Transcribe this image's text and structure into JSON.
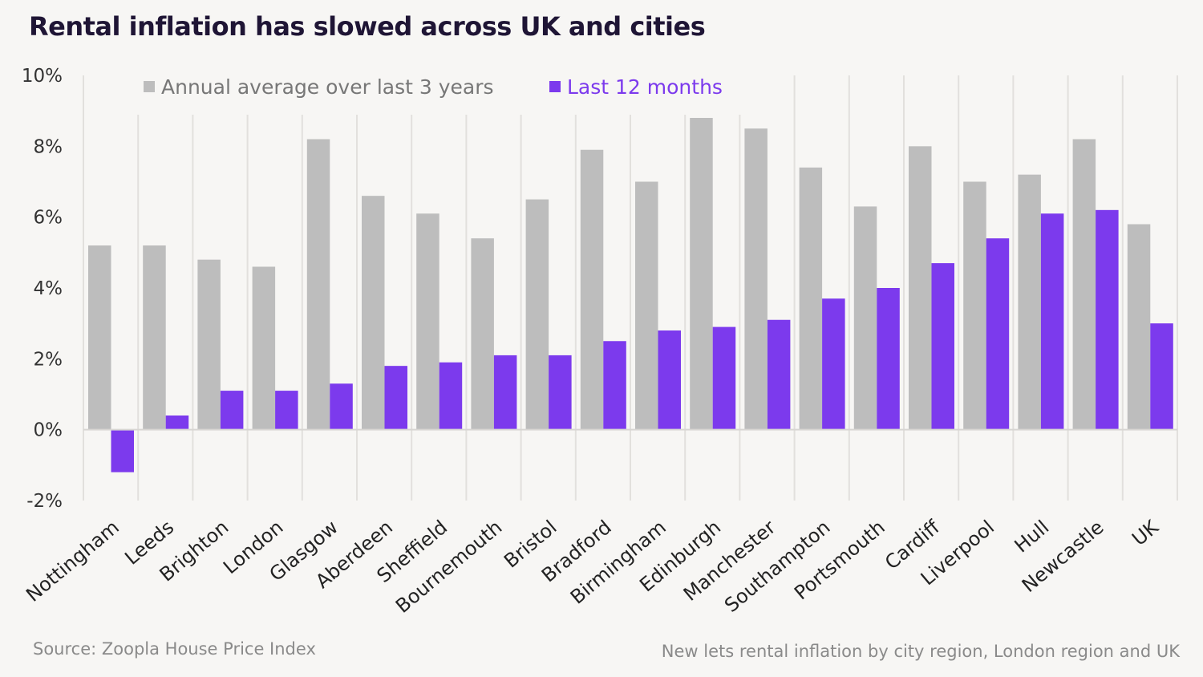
{
  "title": "Rental inflation has slowed across UK and cities",
  "source": "Source: Zoopla House Price Index",
  "note": "New lets rental inflation by city region, London region and UK",
  "chart_data": {
    "type": "bar",
    "title": "Rental inflation has slowed across UK and cities",
    "categories": [
      "Nottingham",
      "Leeds",
      "Brighton",
      "London",
      "Glasgow",
      "Aberdeen",
      "Sheffield",
      "Bournemouth",
      "Bristol",
      "Bradford",
      "Birmingham",
      "Edinburgh",
      "Manchester",
      "Southampton",
      "Portsmouth",
      "Cardiff",
      "Liverpool",
      "Hull",
      "Newcastle",
      "UK"
    ],
    "series": [
      {
        "name": "Annual average over last 3 years",
        "color": "#bdbdbd",
        "values": [
          5.2,
          5.2,
          4.8,
          4.6,
          8.2,
          6.6,
          6.1,
          5.4,
          6.5,
          7.9,
          7.0,
          8.8,
          8.5,
          7.4,
          6.3,
          8.0,
          7.0,
          7.2,
          8.2,
          5.8
        ]
      },
      {
        "name": "Last 12 months",
        "color": "#7c3aed",
        "values": [
          -1.2,
          0.4,
          1.1,
          1.1,
          1.3,
          1.8,
          1.9,
          2.1,
          2.1,
          2.5,
          2.8,
          2.9,
          3.1,
          3.7,
          4.0,
          4.7,
          5.4,
          6.1,
          6.2,
          3.0
        ]
      }
    ],
    "yticks": [
      "10%",
      "8%",
      "6%",
      "4%",
      "2%",
      "0%",
      "-2%"
    ],
    "ylim": [
      -2,
      10
    ],
    "xlabel": "",
    "ylabel": "",
    "grid": "vertical category separators",
    "legend": "top"
  }
}
